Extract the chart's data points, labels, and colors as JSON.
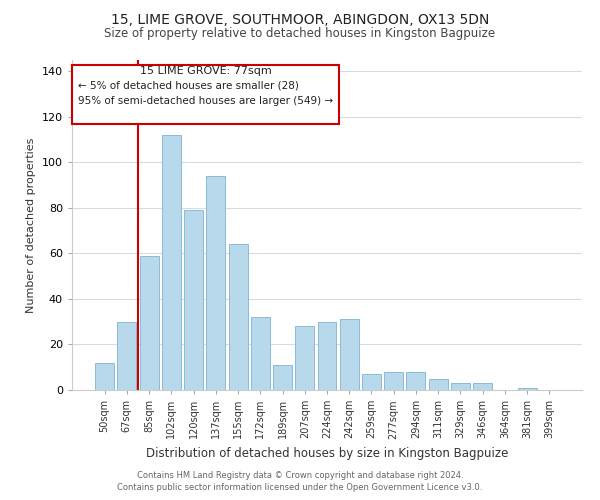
{
  "title1": "15, LIME GROVE, SOUTHMOOR, ABINGDON, OX13 5DN",
  "title2": "Size of property relative to detached houses in Kingston Bagpuize",
  "xlabel": "Distribution of detached houses by size in Kingston Bagpuize",
  "ylabel": "Number of detached properties",
  "footer1": "Contains HM Land Registry data © Crown copyright and database right 2024.",
  "footer2": "Contains public sector information licensed under the Open Government Licence v3.0.",
  "bar_labels": [
    "50sqm",
    "67sqm",
    "85sqm",
    "102sqm",
    "120sqm",
    "137sqm",
    "155sqm",
    "172sqm",
    "189sqm",
    "207sqm",
    "224sqm",
    "242sqm",
    "259sqm",
    "277sqm",
    "294sqm",
    "311sqm",
    "329sqm",
    "346sqm",
    "364sqm",
    "381sqm",
    "399sqm"
  ],
  "bar_values": [
    12,
    30,
    59,
    112,
    79,
    94,
    64,
    32,
    11,
    28,
    30,
    31,
    7,
    8,
    8,
    5,
    3,
    3,
    0,
    1,
    0
  ],
  "bar_color": "#b8d9ec",
  "bar_edge_color": "#8bbcd6",
  "reference_line_x_label": "85sqm",
  "reference_line_color": "#cc0000",
  "ylim": [
    0,
    145
  ],
  "yticks": [
    0,
    20,
    40,
    60,
    80,
    100,
    120,
    140
  ],
  "annotation_box_title": "15 LIME GROVE: 77sqm",
  "annotation_line1": "← 5% of detached houses are smaller (28)",
  "annotation_line2": "95% of semi-detached houses are larger (549) →",
  "background_color": "#ffffff",
  "grid_color": "#d0dde8"
}
